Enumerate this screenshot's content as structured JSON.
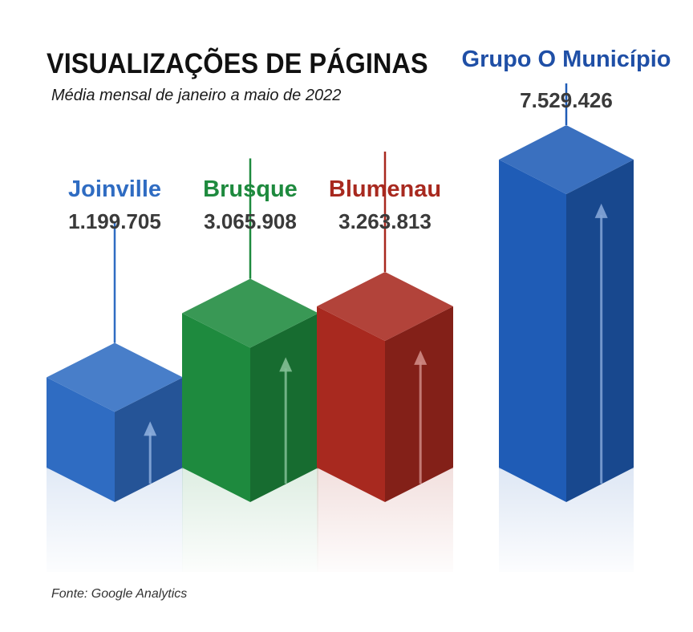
{
  "header": {
    "title": "VISUALIZAÇÕES DE PÁGINAS",
    "subtitle": "Média mensal de janeiro a maio de 2022"
  },
  "footer": {
    "source": "Fonte: Google Analytics"
  },
  "chart_data": {
    "type": "bar",
    "style": "3d-isometric-columns",
    "title": "VISUALIZAÇÕES DE PÁGINAS",
    "subtitle": "Média mensal de janeiro a maio de 2022",
    "categories": [
      "Joinville",
      "Brusque",
      "Blumenau",
      "Grupo O Município"
    ],
    "values": [
      1199705,
      3065908,
      3263813,
      7529426
    ],
    "value_labels": [
      "1.199.705",
      "3.065.908",
      "3.263.813",
      "7.529.426"
    ],
    "colors": [
      "#2f6cc2",
      "#1e8a3e",
      "#a8291f",
      "#1f5cb6"
    ],
    "xlabel": "",
    "ylabel": "",
    "grid": false,
    "legend": "none"
  }
}
